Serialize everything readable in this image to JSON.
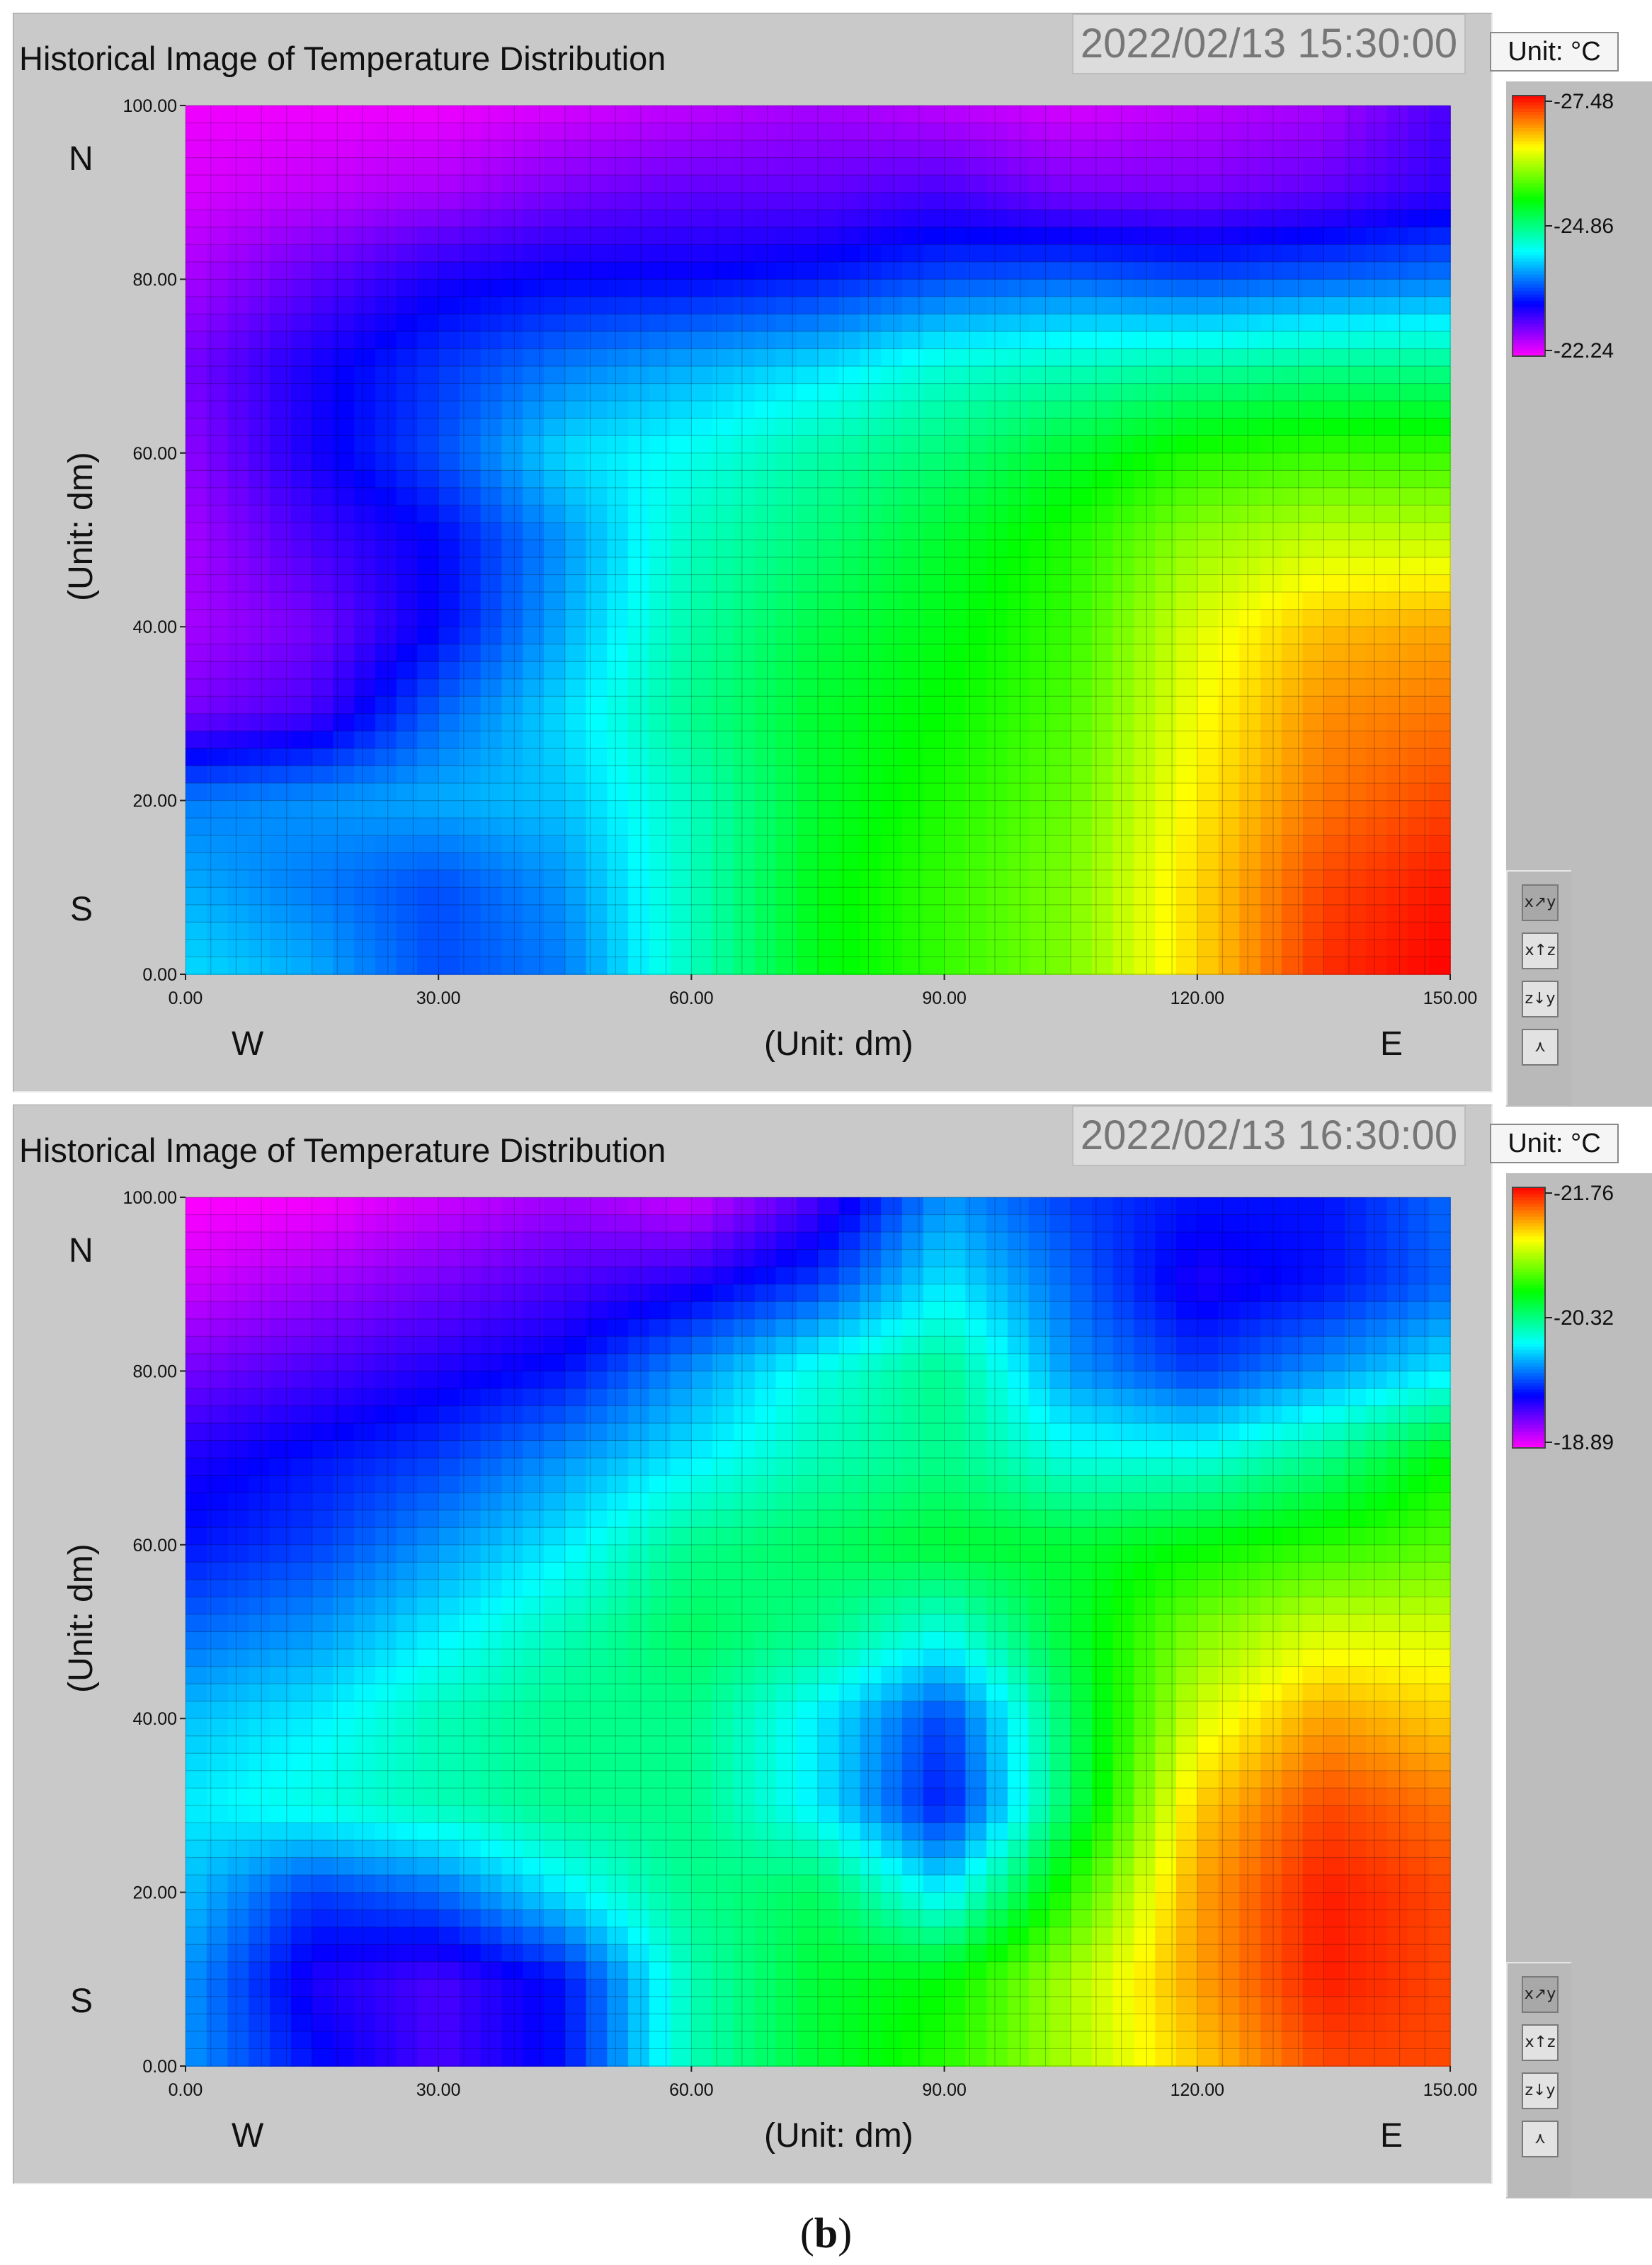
{
  "panels": [
    {
      "title": "Historical Image of Temperature Distribution",
      "timestamp": "2022/02/13 15:30:00",
      "unit_label": "Unit: °C",
      "y_axis_title": "(Unit: dm)",
      "x_axis_title": "(Unit: dm)",
      "dir_north": "N",
      "dir_south": "S",
      "dir_west": "W",
      "dir_east": "E",
      "colorbar_ticks": [
        "27.48",
        "24.86",
        "22.24"
      ],
      "toolbar_icons": [
        "view-xy-icon",
        "view-xz-icon",
        "view-zy-icon",
        "view-3d-icon"
      ]
    },
    {
      "title": "Historical Image of Temperature Distribution",
      "timestamp": "2022/02/13 16:30:00",
      "unit_label": "Unit: °C",
      "y_axis_title": "(Unit: dm)",
      "x_axis_title": "(Unit: dm)",
      "dir_north": "N",
      "dir_south": "S",
      "dir_west": "W",
      "dir_east": "E",
      "colorbar_ticks": [
        "21.76",
        "20.32",
        "18.89"
      ],
      "toolbar_icons": [
        "view-xy-icon",
        "view-xz-icon",
        "view-zy-icon",
        "view-3d-icon"
      ]
    }
  ],
  "caption_letter": "b",
  "colormap": [
    "#ff00ff",
    "#0000ff",
    "#00ffff",
    "#00ff00",
    "#ffff00",
    "#ff0000"
  ],
  "chart_data": [
    {
      "type": "heatmap",
      "title": "Historical Image of Temperature Distribution",
      "xlabel": "(Unit: dm)",
      "ylabel": "(Unit: dm)",
      "xlim": [
        0,
        150
      ],
      "ylim": [
        0,
        100
      ],
      "x_ticks": [
        "0.00",
        "30.00",
        "60.00",
        "90.00",
        "120.00",
        "150.00"
      ],
      "y_ticks": [
        "0.00",
        "20.00",
        "40.00",
        "60.00",
        "80.00",
        "100.00"
      ],
      "zlim": [
        22.24,
        27.48
      ],
      "x": [
        0,
        15,
        30,
        45,
        60,
        75,
        90,
        105,
        120,
        135,
        150
      ],
      "y": [
        0,
        10,
        20,
        30,
        40,
        50,
        60,
        70,
        80,
        90,
        100
      ],
      "z": [
        [
          24.2,
          24.0,
          23.6,
          23.8,
          24.6,
          25.3,
          25.6,
          25.9,
          26.6,
          27.3,
          27.48
        ],
        [
          24.0,
          23.8,
          23.6,
          23.9,
          24.6,
          25.3,
          25.6,
          25.9,
          26.6,
          27.2,
          27.4
        ],
        [
          23.8,
          23.9,
          24.0,
          24.1,
          24.6,
          25.2,
          25.5,
          25.8,
          26.5,
          27.0,
          27.2
        ],
        [
          22.8,
          23.0,
          23.7,
          24.2,
          24.8,
          25.2,
          25.4,
          25.7,
          26.4,
          26.9,
          27.0
        ],
        [
          22.6,
          22.8,
          23.3,
          24.0,
          24.7,
          25.1,
          25.3,
          25.6,
          26.3,
          26.7,
          26.8
        ],
        [
          22.6,
          23.0,
          23.3,
          23.9,
          24.6,
          24.9,
          25.2,
          25.5,
          26.0,
          26.2,
          26.2
        ],
        [
          22.7,
          23.2,
          23.6,
          24.2,
          24.4,
          24.7,
          24.9,
          25.2,
          25.5,
          25.6,
          25.6
        ],
        [
          22.8,
          23.2,
          23.5,
          23.8,
          24.0,
          24.2,
          24.5,
          24.6,
          24.7,
          24.8,
          24.8
        ],
        [
          22.6,
          22.9,
          23.2,
          23.3,
          23.3,
          23.4,
          23.6,
          23.7,
          23.6,
          23.7,
          23.8
        ],
        [
          22.4,
          22.5,
          22.6,
          22.8,
          22.9,
          22.9,
          23.0,
          22.8,
          22.8,
          22.9,
          23.1
        ],
        [
          22.3,
          22.3,
          22.3,
          22.4,
          22.5,
          22.6,
          22.5,
          22.4,
          22.5,
          22.6,
          23.0
        ]
      ]
    },
    {
      "type": "heatmap",
      "title": "Historical Image of Temperature Distribution",
      "xlabel": "(Unit: dm)",
      "ylabel": "(Unit: dm)",
      "xlim": [
        0,
        150
      ],
      "ylim": [
        0,
        100
      ],
      "x_ticks": [
        "0.00",
        "30.00",
        "60.00",
        "90.00",
        "120.00",
        "150.00"
      ],
      "y_ticks": [
        "0.00",
        "20.00",
        "40.00",
        "60.00",
        "80.00",
        "100.00"
      ],
      "zlim": [
        18.89,
        21.76
      ],
      "x": [
        0,
        15,
        30,
        45,
        60,
        75,
        90,
        105,
        120,
        135,
        150
      ],
      "y": [
        0,
        10,
        20,
        30,
        40,
        50,
        60,
        70,
        80,
        90,
        100
      ],
      "z": [
        [
          19.8,
          19.5,
          19.3,
          19.5,
          20.2,
          20.5,
          20.7,
          21.0,
          21.3,
          21.6,
          21.6
        ],
        [
          19.8,
          19.4,
          19.3,
          19.5,
          20.2,
          20.5,
          20.6,
          21.0,
          21.4,
          21.7,
          21.6
        ],
        [
          19.9,
          19.6,
          19.7,
          20.0,
          20.3,
          20.4,
          20.0,
          20.7,
          21.4,
          21.7,
          21.6
        ],
        [
          20.0,
          20.1,
          20.2,
          20.3,
          20.3,
          20.0,
          19.5,
          20.4,
          21.3,
          21.6,
          21.5
        ],
        [
          19.9,
          20.0,
          20.2,
          20.3,
          20.3,
          20.0,
          19.6,
          20.4,
          21.1,
          21.4,
          21.3
        ],
        [
          19.7,
          19.8,
          20.0,
          20.2,
          20.4,
          20.3,
          20.1,
          20.5,
          20.9,
          21.1,
          21.1
        ],
        [
          19.5,
          19.6,
          19.8,
          20.0,
          20.3,
          20.4,
          20.5,
          20.5,
          20.6,
          20.7,
          20.8
        ],
        [
          19.4,
          19.5,
          19.6,
          19.8,
          20.0,
          20.2,
          20.3,
          20.1,
          20.1,
          20.3,
          20.6
        ],
        [
          19.2,
          19.3,
          19.4,
          19.5,
          19.8,
          20.1,
          20.3,
          19.8,
          19.6,
          19.8,
          20.0
        ],
        [
          19.0,
          19.1,
          19.2,
          19.3,
          19.4,
          19.6,
          20.0,
          19.7,
          19.4,
          19.5,
          19.7
        ],
        [
          18.89,
          18.9,
          19.0,
          19.1,
          19.0,
          19.3,
          19.8,
          19.6,
          19.5,
          19.5,
          19.7
        ]
      ]
    }
  ]
}
